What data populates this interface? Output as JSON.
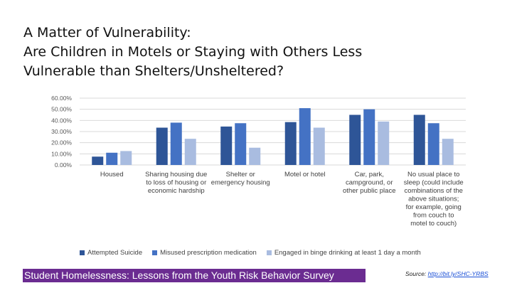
{
  "title_lines": [
    "A Matter of Vulnerability:",
    "Are Children in Motels or Staying with Others Less",
    "Vulnerable than Shelters/Unsheltered?"
  ],
  "banner": "Student Homelessness: Lessons from the Youth Risk Behavior Survey",
  "source": {
    "label": "Source:",
    "link": "http://bit.ly/SHC-YRBS"
  },
  "colors": {
    "series": [
      "#2e5597",
      "#4472c4",
      "#a9bce0"
    ],
    "banner": "#6b2c91"
  },
  "chart_data": {
    "type": "bar",
    "title": "",
    "xlabel": "",
    "ylabel": "",
    "ylim": [
      0,
      60
    ],
    "y_ticks": [
      "60.00%",
      "50.00%",
      "40.00%",
      "30.00%",
      "20.00%",
      "10.00%",
      "0.00%"
    ],
    "grid": true,
    "legend_position": "bottom",
    "categories": [
      [
        "Housed"
      ],
      [
        "Sharing housing due",
        "to loss of housing or",
        "economic hardship"
      ],
      [
        "Shelter or",
        "emergency housing"
      ],
      [
        "Motel or hotel"
      ],
      [
        "Car, park,",
        "campground, or",
        "other public place"
      ],
      [
        "No usual place to",
        "sleep (could include",
        "combinations of the",
        "above situations;",
        "for example, going",
        "from couch to",
        "motel to couch)"
      ]
    ],
    "series": [
      {
        "name": "Attempted Suicide",
        "values": [
          7.5,
          33.5,
          34.5,
          38.5,
          45,
          45
        ]
      },
      {
        "name": "Misused prescription medication",
        "values": [
          11,
          38,
          37.5,
          51,
          50,
          37.5
        ]
      },
      {
        "name": "Engaged in binge drinking at least 1 day a month",
        "values": [
          12.5,
          23.5,
          15.5,
          33.5,
          39,
          23.5
        ]
      }
    ]
  }
}
